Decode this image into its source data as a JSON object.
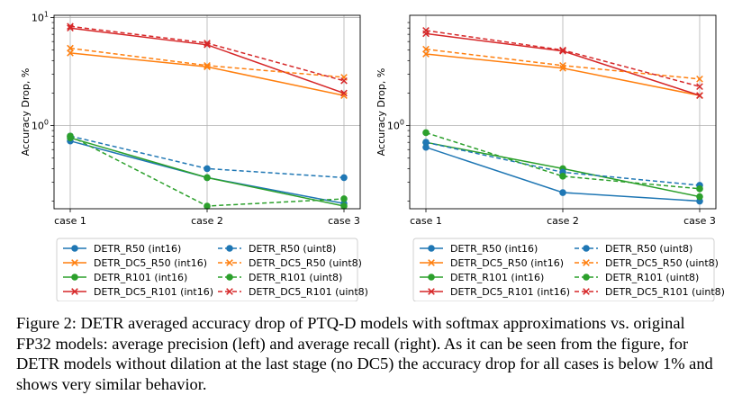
{
  "figure": {
    "caption": "Figure 2: DETR averaged accuracy drop of PTQ-D models with softmax approximations vs. original FP32 models: average precision (left) and average recall (right). As it can be seen from the figure, for DETR models without dilation at the last stage (no DC5) the accuracy drop for all cases is below 1% and shows very similar behavior."
  },
  "colors": {
    "DETR_R50": "#1f77b4",
    "DETR_DC5_R50": "#ff7f0e",
    "DETR_R101": "#2ca02c",
    "DETR_DC5_R101": "#d62728"
  },
  "chart_data": [
    {
      "type": "line",
      "title": "Average precision",
      "xlabel": "",
      "ylabel": "Accuracy Drop, %",
      "yscale": "log",
      "ylim": [
        0.17,
        10.5
      ],
      "y_ticks": [
        {
          "value": 1,
          "label": "10^0"
        },
        {
          "value": 10,
          "label": "10^1"
        }
      ],
      "categories": [
        "case 1",
        "case 2",
        "case 3"
      ],
      "grid": true,
      "legend_position": "below",
      "series": [
        {
          "name": "DETR_R50 (int16)",
          "model": "DETR_R50",
          "style": "solid",
          "marker": "circle",
          "values": [
            0.72,
            0.33,
            0.19
          ]
        },
        {
          "name": "DETR_DC5_R50 (int16)",
          "model": "DETR_DC5_R50",
          "style": "solid",
          "marker": "x",
          "values": [
            4.7,
            3.5,
            1.9
          ]
        },
        {
          "name": "DETR_R101 (int16)",
          "model": "DETR_R101",
          "style": "solid",
          "marker": "circle",
          "values": [
            0.77,
            0.33,
            0.18
          ]
        },
        {
          "name": "DETR_DC5_R101 (int16)",
          "model": "DETR_DC5_R101",
          "style": "solid",
          "marker": "x",
          "values": [
            8.0,
            5.6,
            2.0
          ]
        },
        {
          "name": "DETR_R50 (uint8)",
          "model": "DETR_R50",
          "style": "dashed",
          "marker": "circle",
          "values": [
            0.8,
            0.4,
            0.33
          ]
        },
        {
          "name": "DETR_DC5_R50 (uint8)",
          "model": "DETR_DC5_R50",
          "style": "dashed",
          "marker": "x",
          "values": [
            5.2,
            3.6,
            2.8
          ]
        },
        {
          "name": "DETR_R101 (uint8)",
          "model": "DETR_R101",
          "style": "dashed",
          "marker": "circle",
          "values": [
            0.8,
            0.18,
            0.21
          ]
        },
        {
          "name": "DETR_DC5_R101 (uint8)",
          "model": "DETR_DC5_R101",
          "style": "dashed",
          "marker": "x",
          "values": [
            8.3,
            5.8,
            2.6
          ]
        }
      ]
    },
    {
      "type": "line",
      "title": "Average recall",
      "xlabel": "",
      "ylabel": "Accuracy Drop, %",
      "yscale": "log",
      "ylim": [
        0.17,
        10.5
      ],
      "y_ticks": [
        {
          "value": 1,
          "label": "10^0"
        }
      ],
      "categories": [
        "case 1",
        "case 2",
        "case 3"
      ],
      "grid": true,
      "legend_position": "below",
      "series": [
        {
          "name": "DETR_R50 (int16)",
          "model": "DETR_R50",
          "style": "solid",
          "marker": "circle",
          "values": [
            0.63,
            0.24,
            0.2
          ]
        },
        {
          "name": "DETR_DC5_R50 (int16)",
          "model": "DETR_DC5_R50",
          "style": "solid",
          "marker": "x",
          "values": [
            4.6,
            3.4,
            1.9
          ]
        },
        {
          "name": "DETR_R101 (int16)",
          "model": "DETR_R101",
          "style": "solid",
          "marker": "circle",
          "values": [
            0.7,
            0.4,
            0.22
          ]
        },
        {
          "name": "DETR_DC5_R101 (int16)",
          "model": "DETR_DC5_R101",
          "style": "solid",
          "marker": "x",
          "values": [
            7.1,
            4.9,
            1.9
          ]
        },
        {
          "name": "DETR_R50 (uint8)",
          "model": "DETR_R50",
          "style": "dashed",
          "marker": "circle",
          "values": [
            0.7,
            0.37,
            0.28
          ]
        },
        {
          "name": "DETR_DC5_R50 (uint8)",
          "model": "DETR_DC5_R50",
          "style": "dashed",
          "marker": "x",
          "values": [
            5.1,
            3.6,
            2.7
          ]
        },
        {
          "name": "DETR_R101 (uint8)",
          "model": "DETR_R101",
          "style": "dashed",
          "marker": "circle",
          "values": [
            0.86,
            0.34,
            0.26
          ]
        },
        {
          "name": "DETR_DC5_R101 (uint8)",
          "model": "DETR_DC5_R101",
          "style": "dashed",
          "marker": "x",
          "values": [
            7.6,
            5.0,
            2.3
          ]
        }
      ]
    }
  ]
}
